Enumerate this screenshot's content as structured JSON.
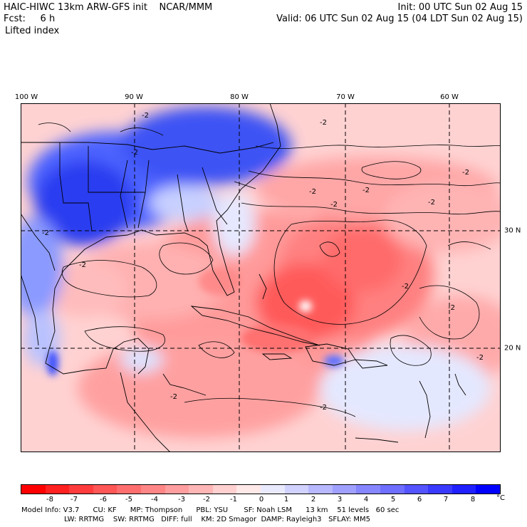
{
  "header": {
    "line1_left": "HAIC-HIWC 13km ARW-GFS init    NCAR/MMM",
    "line2_left": "Fcst:     6 h",
    "line3_left": "Lifted index",
    "line1_right": "Init: 00 UTC Sun 02 Aug 15",
    "line2_right": "Valid: 06 UTC Sun 02 Aug 15 (04 LDT Sun 02 Aug 15)"
  },
  "map": {
    "longitude_labels": [
      "100 W",
      "90 W",
      "80 W",
      "70 W",
      "60 W"
    ],
    "latitude_labels": [
      "30 N",
      "20 N"
    ],
    "contour_labels": [
      "-2",
      "-2",
      "-2",
      "-2",
      "-2",
      "-2",
      "-2",
      "-2",
      "-2",
      "-2",
      "-2",
      "-2",
      "-2",
      "-2",
      "-2"
    ],
    "colors": {
      "border": "#000000",
      "grid": "#000000",
      "land_outline": "#000000"
    }
  },
  "colorbar": {
    "tick_labels": [
      "-8",
      "-7",
      "-6",
      "-5",
      "-4",
      "-3",
      "-2",
      "-1",
      "0",
      "1",
      "2",
      "3",
      "4",
      "5",
      "6",
      "7",
      "8"
    ],
    "unit": "°C",
    "colors": [
      "#ff0000",
      "#ff2020",
      "#ff3c3c",
      "#ff5656",
      "#ff6e6e",
      "#ff8686",
      "#ff9e9e",
      "#ffb6b6",
      "#ffd0d0",
      "#ffe8e8",
      "#eaeaff",
      "#d2d2ff",
      "#b8b8ff",
      "#a0a0ff",
      "#8686ff",
      "#6e6eff",
      "#5454ff",
      "#3a3aff",
      "#2020ff",
      "#0000ff"
    ]
  },
  "model_info": {
    "line1": "Model Info: V3.7      CU: KF      MP: Thompson      PBL: YSU       SF: Noah LSM      13 km    51 levels   60 sec",
    "line2": "LW: RRTMG    SW: RRTMG   DIFF: full    KM: 2D Smagor  DAMP: Rayleigh3   SFLAY: MM5"
  }
}
